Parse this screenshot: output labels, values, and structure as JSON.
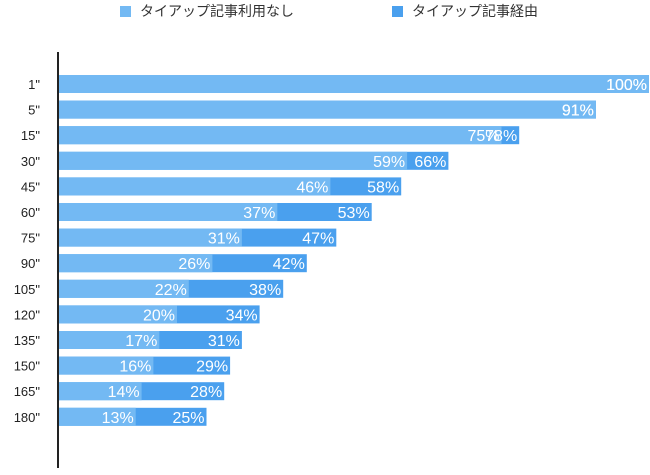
{
  "chart_data": {
    "type": "bar",
    "orientation": "horizontal",
    "stacking": "overlay",
    "categories": [
      "1\"",
      "5\"",
      "15\"",
      "30\"",
      "45\"",
      "60\"",
      "75\"",
      "90\"",
      "105\"",
      "120\"",
      "135\"",
      "150\"",
      "165\"",
      "180\""
    ],
    "series": [
      {
        "name": "タイアップ記事利用なし",
        "color": "#73b9f3",
        "values": [
          100,
          91,
          75,
          59,
          46,
          37,
          31,
          26,
          22,
          20,
          17,
          16,
          14,
          13
        ],
        "labels": [
          "100%",
          "91%",
          "75%",
          "59%",
          "46%",
          "37%",
          "31%",
          "26%",
          "22%",
          "20%",
          "17%",
          "16%",
          "14%",
          "13%"
        ]
      },
      {
        "name": "タイアップ記事経由",
        "color": "#4aa0ee",
        "values": [
          100,
          91,
          78,
          66,
          58,
          53,
          47,
          42,
          38,
          34,
          31,
          29,
          28,
          25
        ],
        "labels": [
          "100%",
          "91%",
          "78%",
          "66%",
          "58%",
          "53%",
          "47%",
          "42%",
          "38%",
          "34%",
          "31%",
          "29%",
          "28%",
          "25%"
        ]
      }
    ],
    "xlim": [
      0,
      100
    ],
    "legend": "top",
    "grid": false
  }
}
